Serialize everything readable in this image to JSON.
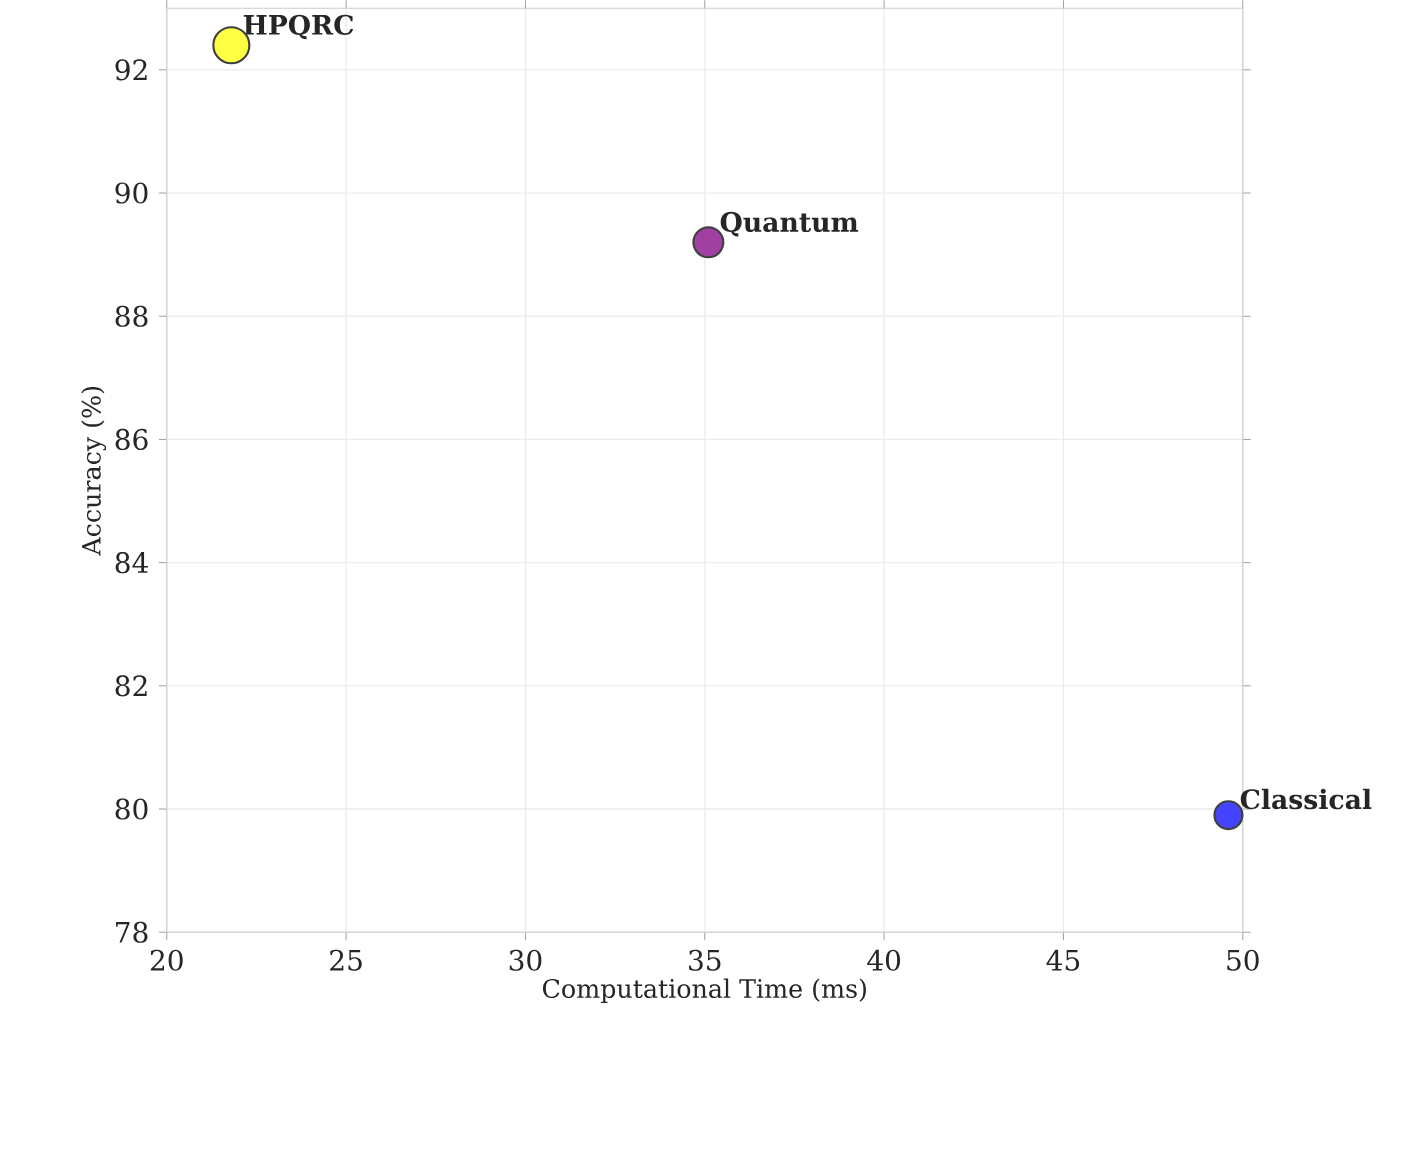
{
  "chart_data": {
    "type": "bubble",
    "xlabel": "Computational Time (ms)",
    "ylabel": "Accuracy (%)",
    "x": [
      21.8,
      35.1,
      49.6
    ],
    "values": [
      92.4,
      89.2,
      79.9
    ],
    "sizes": [
      1,
      0.69,
      0.6
    ],
    "colors": [
      "#ffff44",
      "#a040a0",
      "#4444ff"
    ],
    "xlim": [
      20,
      50
    ],
    "xticks": [
      20,
      25,
      30,
      35,
      40,
      45,
      50
    ],
    "ylim": [
      78,
      93
    ],
    "yticks": [
      78,
      80,
      82,
      84,
      86,
      88,
      90,
      92
    ],
    "grid": true,
    "annotations": [
      {
        "text": "HPQRC",
        "x": 21.8,
        "y": 92.4
      },
      {
        "text": "Quantum",
        "x": 35.1,
        "y": 89.2
      },
      {
        "text": "Classical",
        "x": 49.6,
        "y": 79.9
      }
    ]
  }
}
